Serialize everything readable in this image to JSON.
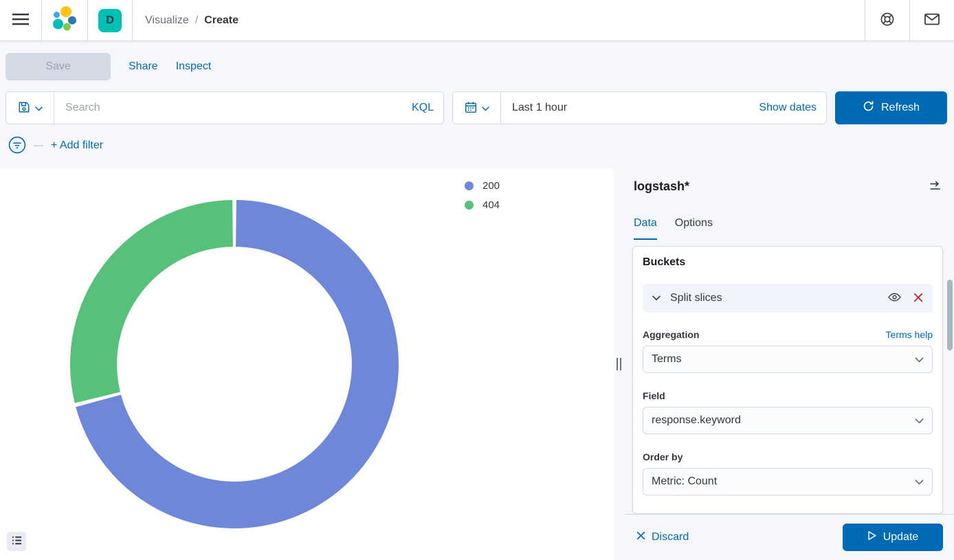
{
  "header": {
    "space_badge": "D",
    "breadcrumb": {
      "section": "Visualize",
      "separator": "/",
      "current": "Create"
    }
  },
  "toolbar": {
    "save_label": "Save",
    "share_label": "Share",
    "inspect_label": "Inspect"
  },
  "query_bar": {
    "search_placeholder": "Search",
    "language_label": "KQL",
    "time_value": "Last 1 hour",
    "show_dates_label": "Show dates",
    "refresh_label": "Refresh"
  },
  "filter_bar": {
    "add_filter_label": "+ Add filter"
  },
  "chart_data": {
    "type": "pie",
    "subtype": "donut",
    "categories": [
      "200",
      "404"
    ],
    "values": [
      71,
      29
    ],
    "values_are_percent_estimates": true,
    "colors": [
      "#6F87D8",
      "#57C17B"
    ],
    "legend_position": "top-right",
    "start_angle_deg": 0,
    "direction": "clockwise",
    "inner_radius_ratio": 0.715
  },
  "editor": {
    "index_pattern": "logstash*",
    "tabs": [
      {
        "label": "Data"
      },
      {
        "label": "Options"
      }
    ],
    "active_tab": "Data",
    "buckets": {
      "section_title": "Buckets",
      "bucket_label": "Split slices",
      "aggregation_label": "Aggregation",
      "aggregation_help_label": "Terms help",
      "aggregation_value": "Terms",
      "field_label": "Field",
      "field_value": "response.keyword",
      "order_by_label": "Order by",
      "order_by_value": "Metric: Count"
    },
    "footer": {
      "discard_label": "Discard",
      "update_label": "Update"
    }
  },
  "icons": {
    "menu-icon": "hamburger",
    "elastic-logo": "colored-circle-cluster",
    "help-icon": "life-ring",
    "mail-icon": "envelope",
    "save-query-icon": "floppy-disk",
    "chevron-down-icon": "chevron-down",
    "calendar-icon": "calendar",
    "refresh-icon": "circular-arrow",
    "filter-icon": "filter-in-circle",
    "collapse-panel-icon": "menu-arrow-right",
    "eye-icon": "eye",
    "remove-icon": "red-cross",
    "discard-icon": "cross",
    "play-icon": "outline-triangle-right",
    "legend-list-icon": "bulleted-list"
  },
  "colors": {
    "primary": "#006BB4",
    "danger": "#BD271E",
    "space_badge_bg": "#00BFB3",
    "panel_bg": "#F5F7FA",
    "border": "#D3DAE6",
    "text": "#343741",
    "subdued": "#69707D"
  }
}
